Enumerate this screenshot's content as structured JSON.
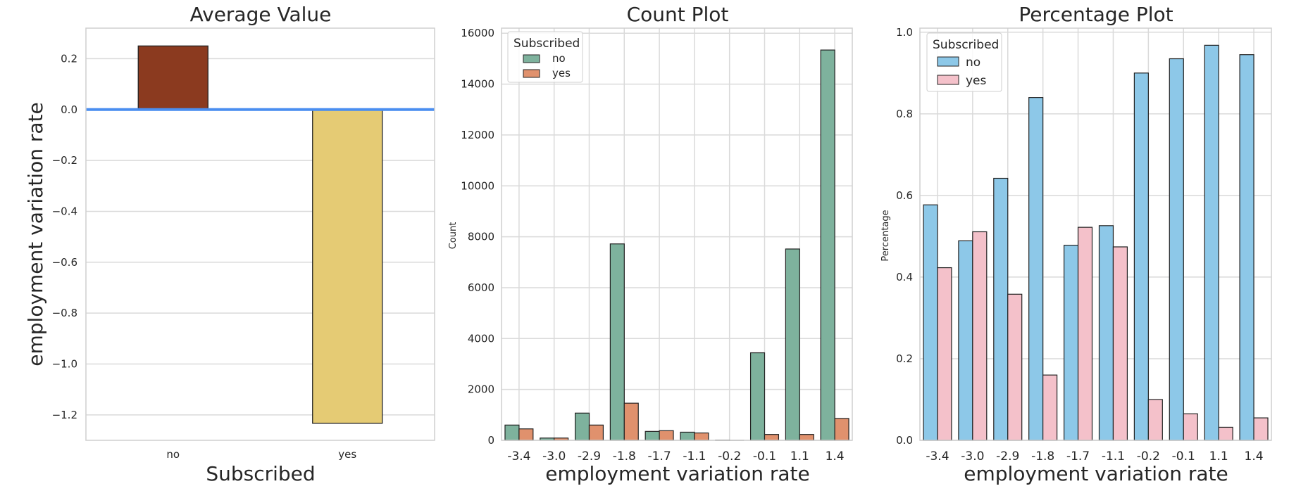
{
  "colors": {
    "no_avg": "#8B3A1F",
    "yes_avg": "#E5CB74",
    "zero_line": "#4A8EF0",
    "count_no": "#7EB29D",
    "count_yes": "#E0916D",
    "pct_no": "#8DC8E8",
    "pct_yes": "#F4C1CA",
    "grid": "#DADADA",
    "frame": "#CFCFCF"
  },
  "chart_data": [
    {
      "type": "bar",
      "title": "Average Value",
      "xlabel": "Subscribed",
      "ylabel": "employment variation rate",
      "categories": [
        "no",
        "yes"
      ],
      "values": [
        0.25,
        -1.233
      ],
      "ylim": [
        -1.3,
        0.32
      ],
      "yticks": [
        0.2,
        0.0,
        -0.2,
        -0.4,
        -0.6,
        -0.8,
        -1.0,
        -1.2
      ],
      "ytick_labels": [
        "0.2",
        "0.0",
        "−0.2",
        "−0.4",
        "−0.6",
        "−0.8",
        "−1.0",
        "−1.2"
      ],
      "reference_line": 0,
      "grid": "horizontal"
    },
    {
      "type": "bar",
      "title": "Count Plot",
      "xlabel": "employment variation rate",
      "ylabel": "Count",
      "categories": [
        "-3.4",
        "-3.0",
        "-2.9",
        "-1.8",
        "-1.7",
        "-1.1",
        "-0.2",
        "-0.1",
        "1.1",
        "1.4"
      ],
      "legend_title": "Subscribed",
      "legend_position": "top-left",
      "series": [
        {
          "name": "no",
          "values": [
            600,
            90,
            1070,
            7720,
            350,
            320,
            10,
            3440,
            7520,
            15340
          ]
        },
        {
          "name": "yes",
          "values": [
            450,
            90,
            600,
            1460,
            380,
            290,
            1,
            230,
            230,
            860
          ]
        }
      ],
      "ylim": [
        0,
        16200
      ],
      "yticks": [
        0,
        2000,
        4000,
        6000,
        8000,
        10000,
        12000,
        14000,
        16000
      ],
      "grid": "both"
    },
    {
      "type": "bar",
      "title": "Percentage Plot",
      "xlabel": "employment variation rate",
      "ylabel": "Percentage",
      "categories": [
        "-3.4",
        "-3.0",
        "-2.9",
        "-1.8",
        "-1.7",
        "-1.1",
        "-0.2",
        "-0.1",
        "1.1",
        "1.4"
      ],
      "legend_title": "Subscribed",
      "legend_position": "top-left",
      "series": [
        {
          "name": "no",
          "values": [
            0.577,
            0.489,
            0.642,
            0.84,
            0.478,
            0.526,
            0.9,
            0.935,
            0.968,
            0.945
          ]
        },
        {
          "name": "yes",
          "values": [
            0.423,
            0.511,
            0.358,
            0.16,
            0.522,
            0.474,
            0.1,
            0.065,
            0.032,
            0.055
          ]
        }
      ],
      "ylim": [
        0,
        1.01
      ],
      "yticks": [
        0.0,
        0.2,
        0.4,
        0.6,
        0.8,
        1.0
      ],
      "ytick_labels": [
        "0.0",
        "0.2",
        "0.4",
        "0.6",
        "0.8",
        "1.0"
      ],
      "grid": "both"
    }
  ]
}
